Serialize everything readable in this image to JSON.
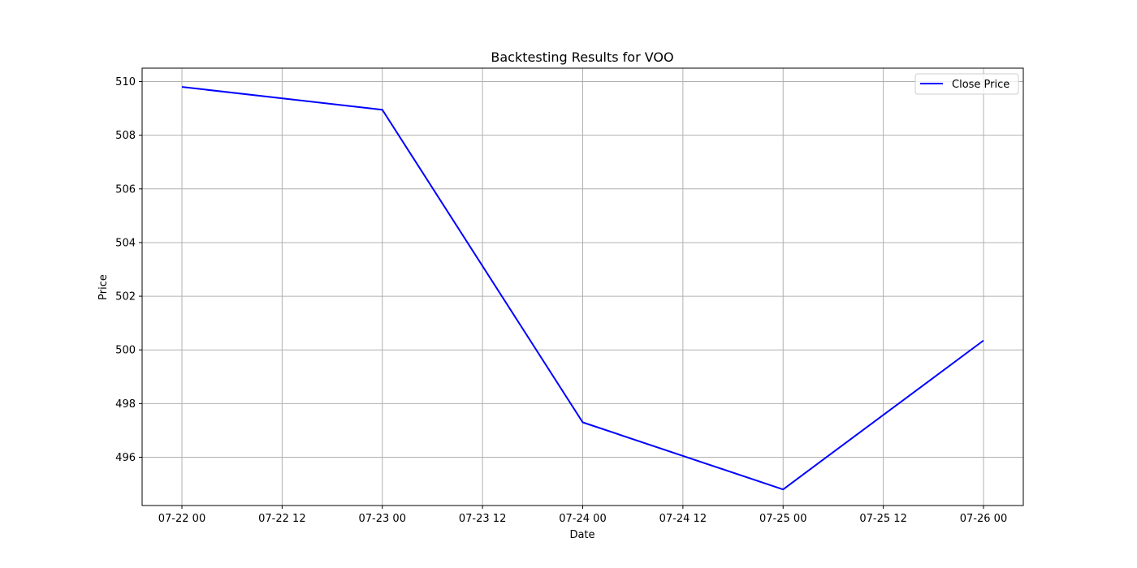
{
  "chart_data": {
    "type": "line",
    "title": "Backtesting Results for VOO",
    "xlabel": "Date",
    "ylabel": "Price",
    "x": [
      "07-22 00",
      "07-23 00",
      "07-24 00",
      "07-25 00",
      "07-26 00"
    ],
    "x_tick_labels": [
      "07-22 00",
      "07-22 12",
      "07-23 00",
      "07-23 12",
      "07-24 00",
      "07-24 12",
      "07-25 00",
      "07-25 12",
      "07-26 00"
    ],
    "y_tick_labels": [
      "496",
      "498",
      "500",
      "502",
      "504",
      "506",
      "508",
      "510"
    ],
    "series": [
      {
        "name": "Close Price",
        "color": "#0000ff",
        "values": [
          509.8,
          508.95,
          497.3,
          494.8,
          500.35
        ]
      }
    ],
    "ylim": [
      494.2,
      510.5
    ],
    "grid": true,
    "legend_position": "top-right"
  }
}
